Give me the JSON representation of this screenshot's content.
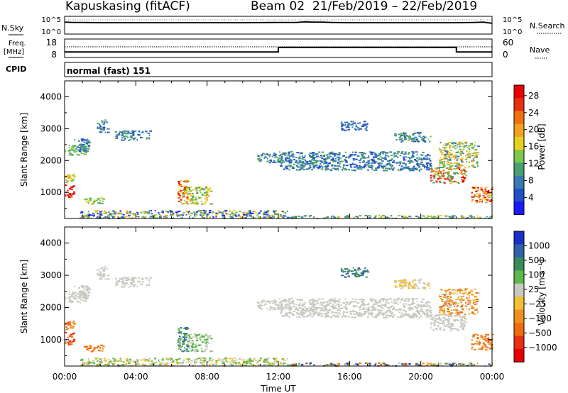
{
  "header": {
    "station": "Kapuskasing (fitACF)",
    "beam_date": "Beam 02  21/Feb/2019 – 22/Feb/2019"
  },
  "chart_data": [
    {
      "type": "line",
      "panel": "noise",
      "left_label": "N.Sky",
      "right_label": "N.Search",
      "left_ticks": [
        "10^5",
        "10^0"
      ],
      "right_ticks": [
        "10^5",
        "10^0"
      ],
      "x": [
        0,
        0.5,
        1,
        2,
        4,
        6,
        8,
        10,
        12,
        13,
        13.5,
        14,
        14.5,
        15,
        16,
        18,
        20,
        22,
        23,
        23.5,
        24
      ],
      "series": [
        {
          "values": [
            4.2,
            4.1,
            4.1,
            4.0,
            4.0,
            4.0,
            4.0,
            4.0,
            4.1,
            4.1,
            4.3,
            4.2,
            4.2,
            4.1,
            4.0,
            4.0,
            4.0,
            4.0,
            4.1,
            4.2,
            3.8
          ]
        }
      ]
    },
    {
      "type": "line",
      "panel": "frequency",
      "left_label": "Freq.",
      "left_unit": "[MHz]",
      "right_label": "Nave",
      "left_ticks": [
        "18",
        "8"
      ],
      "right_ticks": [
        "60",
        "0"
      ],
      "x": [
        0,
        12,
        12,
        22,
        22,
        24
      ],
      "series": [
        {
          "values": [
            11,
            11,
            13.5,
            13.5,
            11,
            11
          ]
        }
      ]
    },
    {
      "type": "table",
      "panel": "cpid",
      "label": "CPID",
      "value": "normal (fast) 151"
    },
    {
      "type": "heatmap",
      "panel": "power",
      "ylabel": "Slant Range [km]",
      "ylim": [
        180,
        4500
      ],
      "yticks": [
        "1000",
        "2000",
        "3000",
        "4000"
      ],
      "xlim": [
        0,
        24
      ],
      "colorbar_label": "Power [dB]",
      "colorbar_ticks": [
        "4",
        "8",
        "12",
        "16",
        "20",
        "24",
        "28"
      ],
      "colors": [
        "#1a1aff",
        "#2050c8",
        "#3a7ab0",
        "#4aa070",
        "#7cc84a",
        "#e8d020",
        "#f4a020",
        "#f07010",
        "#e83010",
        "#e80000"
      ],
      "clusters": [
        {
          "t": [
            0.0,
            0.5
          ],
          "r": [
            850,
            1250
          ],
          "level": [
            8,
            9
          ]
        },
        {
          "t": [
            0.0,
            0.5
          ],
          "r": [
            1300,
            1600
          ],
          "level": [
            4,
            6
          ]
        },
        {
          "t": [
            0.0,
            1.2
          ],
          "r": [
            2150,
            2500
          ],
          "level": [
            3,
            4
          ]
        },
        {
          "t": [
            0.5,
            1.4
          ],
          "r": [
            2300,
            2700
          ],
          "level": [
            1,
            3
          ]
        },
        {
          "t": [
            1.0,
            2.2
          ],
          "r": [
            650,
            850
          ],
          "level": [
            3,
            5
          ]
        },
        {
          "t": [
            1.8,
            2.4
          ],
          "r": [
            2900,
            3300
          ],
          "level": [
            1,
            3
          ]
        },
        {
          "t": [
            2.8,
            4.8
          ],
          "r": [
            2650,
            2950
          ],
          "level": [
            1,
            3
          ]
        },
        {
          "t": [
            6.3,
            6.9
          ],
          "r": [
            600,
            1400
          ],
          "level": [
            4,
            9
          ]
        },
        {
          "t": [
            6.8,
            8.2
          ],
          "r": [
            650,
            1200
          ],
          "level": [
            3,
            6
          ]
        },
        {
          "t": [
            0.8,
            12.5
          ],
          "r": [
            200,
            450
          ],
          "level": [
            0,
            6
          ]
        },
        {
          "t": [
            10.8,
            12.2
          ],
          "r": [
            1950,
            2250
          ],
          "level": [
            1,
            4
          ]
        },
        {
          "t": [
            12.0,
            20.5
          ],
          "r": [
            1700,
            2300
          ],
          "level": [
            1,
            3
          ]
        },
        {
          "t": [
            15.5,
            17.0
          ],
          "r": [
            2950,
            3250
          ],
          "level": [
            1,
            2
          ]
        },
        {
          "t": [
            18.5,
            20.5
          ],
          "r": [
            2600,
            2900
          ],
          "level": [
            1,
            4
          ]
        },
        {
          "t": [
            20.5,
            22.5
          ],
          "r": [
            1300,
            1800
          ],
          "level": [
            3,
            9
          ]
        },
        {
          "t": [
            21.0,
            23.2
          ],
          "r": [
            1800,
            2600
          ],
          "level": [
            2,
            6
          ]
        },
        {
          "t": [
            22.8,
            24.0
          ],
          "r": [
            700,
            1200
          ],
          "level": [
            5,
            9
          ]
        },
        {
          "t": [
            12.5,
            24.0
          ],
          "r": [
            200,
            300
          ],
          "level": [
            2,
            5
          ]
        }
      ]
    },
    {
      "type": "heatmap",
      "panel": "velocity",
      "ylabel": "Slant Range [km]",
      "xlabel": "Time UT",
      "ylim": [
        180,
        4500
      ],
      "yticks": [
        "1000",
        "2000",
        "3000",
        "4000"
      ],
      "xlim": [
        0,
        24
      ],
      "xticks": [
        "00:00",
        "04:00",
        "08:00",
        "12:00",
        "16:00",
        "20:00",
        "00:00"
      ],
      "colorbar_label": "Velocity [m s⁻¹]",
      "colorbar_ticks": [
        "1000",
        "500",
        "100",
        "25",
        "−25",
        "−100",
        "−500",
        "−1000"
      ],
      "colors": [
        "#1a30c8",
        "#2f62a8",
        "#3a8a5a",
        "#5cb84a",
        "#c8c8c0",
        "#f0c030",
        "#f09020",
        "#f06a10",
        "#e83010",
        "#e80000"
      ],
      "clusters": [
        {
          "t": [
            0.0,
            0.5
          ],
          "r": [
            850,
            1250
          ],
          "level": [
            7,
            8
          ]
        },
        {
          "t": [
            0.0,
            0.5
          ],
          "r": [
            1300,
            1600
          ],
          "level": [
            6,
            7
          ]
        },
        {
          "t": [
            0.0,
            1.2
          ],
          "r": [
            2150,
            2500
          ],
          "level": [
            4,
            4
          ]
        },
        {
          "t": [
            0.5,
            1.4
          ],
          "r": [
            2300,
            2700
          ],
          "level": [
            4,
            4
          ]
        },
        {
          "t": [
            1.0,
            2.2
          ],
          "r": [
            650,
            850
          ],
          "level": [
            6,
            7
          ]
        },
        {
          "t": [
            1.8,
            2.4
          ],
          "r": [
            2900,
            3300
          ],
          "level": [
            4,
            4
          ]
        },
        {
          "t": [
            2.8,
            4.8
          ],
          "r": [
            2650,
            2950
          ],
          "level": [
            4,
            4
          ]
        },
        {
          "t": [
            6.3,
            6.9
          ],
          "r": [
            600,
            1400
          ],
          "level": [
            1,
            3
          ]
        },
        {
          "t": [
            6.8,
            8.2
          ],
          "r": [
            650,
            1200
          ],
          "level": [
            3,
            4
          ]
        },
        {
          "t": [
            0.8,
            12.5
          ],
          "r": [
            200,
            450
          ],
          "level": [
            3,
            5
          ]
        },
        {
          "t": [
            10.8,
            12.2
          ],
          "r": [
            1950,
            2250
          ],
          "level": [
            4,
            4
          ]
        },
        {
          "t": [
            12.0,
            20.5
          ],
          "r": [
            1700,
            2300
          ],
          "level": [
            4,
            4
          ]
        },
        {
          "t": [
            15.5,
            17.0
          ],
          "r": [
            2950,
            3250
          ],
          "level": [
            1,
            2
          ]
        },
        {
          "t": [
            18.5,
            20.5
          ],
          "r": [
            2600,
            2900
          ],
          "level": [
            4,
            5
          ]
        },
        {
          "t": [
            20.5,
            22.5
          ],
          "r": [
            1300,
            1800
          ],
          "level": [
            4,
            4
          ]
        },
        {
          "t": [
            21.0,
            23.2
          ],
          "r": [
            1800,
            2600
          ],
          "level": [
            4,
            7
          ]
        },
        {
          "t": [
            22.8,
            24.0
          ],
          "r": [
            700,
            1200
          ],
          "level": [
            6,
            7
          ]
        },
        {
          "t": [
            12.5,
            24.0
          ],
          "r": [
            200,
            300
          ],
          "level": [
            0,
            8
          ]
        }
      ]
    }
  ]
}
